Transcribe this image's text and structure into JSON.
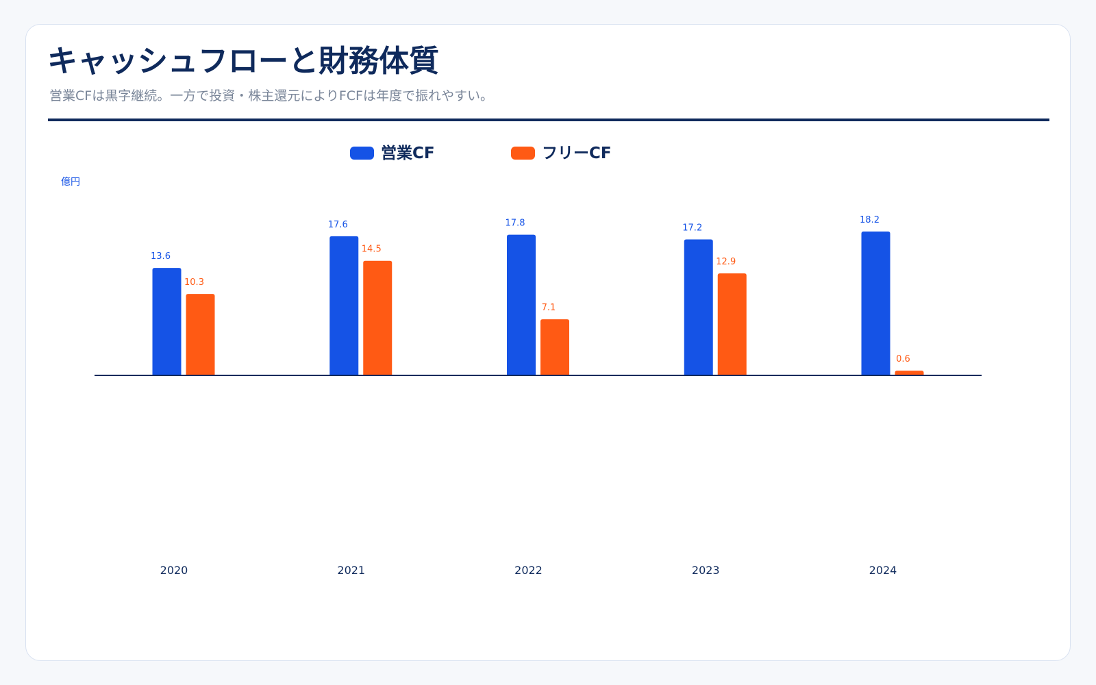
{
  "header": {
    "title": "キャッシュフローと財務体質",
    "subtitle": "営業CFは黒字継続。一方で投資・株主還元によりFCFは年度で振れやすい。"
  },
  "chart_data": {
    "type": "bar",
    "categories": [
      "2020",
      "2021",
      "2022",
      "2023",
      "2024"
    ],
    "series": [
      {
        "name": "営業CF",
        "values": [
          13.6,
          17.6,
          17.8,
          17.2,
          18.2
        ],
        "color": "#1553e6"
      },
      {
        "name": "フリーCF",
        "values": [
          10.3,
          14.5,
          7.1,
          12.9,
          0.6
        ],
        "color": "#ff5a14"
      }
    ],
    "ylabel": "億円",
    "ylim": [
      -18.2,
      18.2
    ],
    "legend": "top-center",
    "grid": false
  }
}
